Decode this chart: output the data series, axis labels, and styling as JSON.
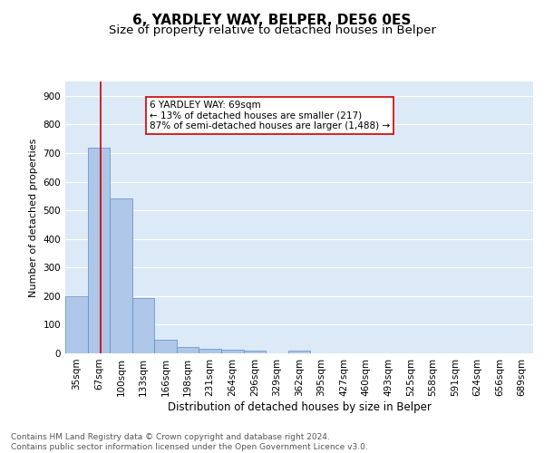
{
  "title1": "6, YARDLEY WAY, BELPER, DE56 0ES",
  "title2": "Size of property relative to detached houses in Belper",
  "xlabel": "Distribution of detached houses by size in Belper",
  "ylabel": "Number of detached properties",
  "categories": [
    "35sqm",
    "67sqm",
    "100sqm",
    "133sqm",
    "166sqm",
    "198sqm",
    "231sqm",
    "264sqm",
    "296sqm",
    "329sqm",
    "362sqm",
    "395sqm",
    "427sqm",
    "460sqm",
    "493sqm",
    "525sqm",
    "558sqm",
    "591sqm",
    "624sqm",
    "656sqm",
    "689sqm"
  ],
  "values": [
    200,
    720,
    540,
    192,
    48,
    22,
    16,
    13,
    10,
    0,
    10,
    0,
    0,
    0,
    0,
    0,
    0,
    0,
    0,
    0,
    0
  ],
  "bar_color": "#aec6e8",
  "bar_edge_color": "#5a8fc2",
  "background_color": "#dce9f7",
  "grid_color": "#ffffff",
  "marker_line_color": "#cc0000",
  "annotation_text": "6 YARDLEY WAY: 69sqm\n← 13% of detached houses are smaller (217)\n87% of semi-detached houses are larger (1,488) →",
  "annotation_box_color": "#ffffff",
  "annotation_box_edge": "#cc0000",
  "ylim": [
    0,
    950
  ],
  "yticks": [
    0,
    100,
    200,
    300,
    400,
    500,
    600,
    700,
    800,
    900
  ],
  "footer_text": "Contains HM Land Registry data © Crown copyright and database right 2024.\nContains public sector information licensed under the Open Government Licence v3.0.",
  "title1_fontsize": 11,
  "title2_fontsize": 9.5,
  "xlabel_fontsize": 8.5,
  "ylabel_fontsize": 8,
  "tick_fontsize": 7.5,
  "annotation_fontsize": 7.5,
  "footer_fontsize": 6.5
}
